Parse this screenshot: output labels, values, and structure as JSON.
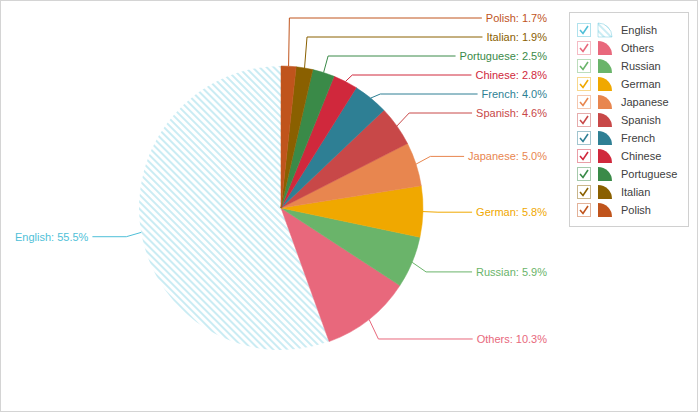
{
  "chart_data": {
    "type": "pie",
    "categories": [
      "English",
      "Others",
      "Russian",
      "German",
      "Japanese",
      "Spanish",
      "French",
      "Chinese",
      "Portuguese",
      "Italian",
      "Polish"
    ],
    "values": [
      55.5,
      10.3,
      5.9,
      5.8,
      5.0,
      4.6,
      4.0,
      2.8,
      2.5,
      1.9,
      1.7
    ],
    "value_labels": [
      "English: 55.5%",
      "Others: 10.3%",
      "Russian: 5.9%",
      "German: 5.8%",
      "Japanese: 5.0%",
      "Spanish: 4.6%",
      "French: 4.0%",
      "Chinese: 2.8%",
      "Portuguese: 2.5%",
      "Italian: 1.9%",
      "Polish: 1.7%"
    ],
    "colors": [
      "#4fbfd8",
      "#e8687c",
      "#6ab46a",
      "#f0a800",
      "#e8864f",
      "#c84848",
      "#2e7f94",
      "#d0283c",
      "#3a8a48",
      "#8a6000",
      "#c0541c"
    ],
    "legend": "top-right",
    "data_labels": true
  }
}
